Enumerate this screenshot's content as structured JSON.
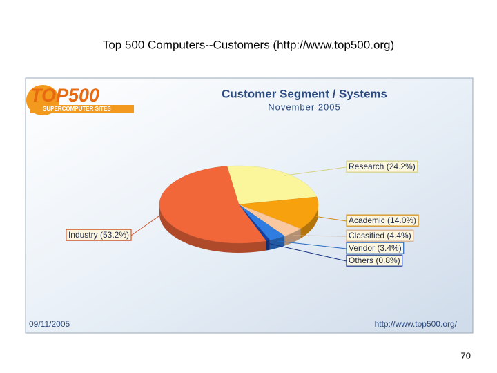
{
  "slide": {
    "title": "Top 500 Computers--Customers (http://www.top500.org)",
    "page_number": "70"
  },
  "chart_data": {
    "type": "pie",
    "title": "Customer Segment / Systems",
    "subtitle": "November 2005",
    "logo": {
      "name": "TOP500",
      "tagline": "SUPERCOMPUTER SITES"
    },
    "date": "09/11/2005",
    "source": "http://www.top500.org/",
    "categories": [
      "Research (24.2%)",
      "Academic (14.0%)",
      "Classified (4.4%)",
      "Vendor (3.4%)",
      "Others (0.8%)",
      "Industry (53.2%)"
    ],
    "values": [
      24.2,
      14.0,
      4.4,
      3.4,
      0.8,
      53.2
    ],
    "colors": [
      "#fbf59b",
      "#f8a10f",
      "#f9c8a0",
      "#2f7de1",
      "#1a3e9c",
      "#f2673a"
    ]
  }
}
